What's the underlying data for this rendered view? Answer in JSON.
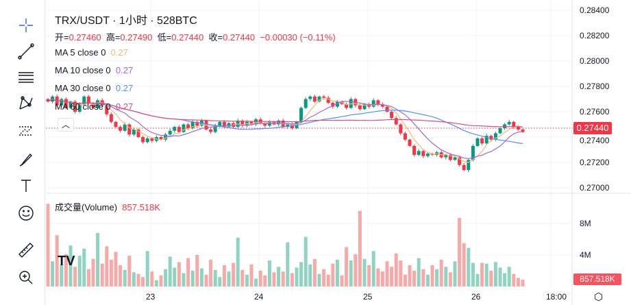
{
  "header": {
    "title": "TRX/USDT · 1小时 · 528BTC",
    "open_label": "开=",
    "open": "0.27460",
    "high_label": "高=",
    "high": "0.27490",
    "low_label": "低=",
    "low": "0.27440",
    "close_label": "收=",
    "close": "0.27440",
    "change": "−0.00030 (−0.11%)"
  },
  "indicators": [
    {
      "label": "MA 5 close 0",
      "value": "0.27",
      "color": "#f5b97a"
    },
    {
      "label": "MA 10 close 0",
      "value": "0.27",
      "color": "#9c6ad3"
    },
    {
      "label": "MA 30 close 0",
      "value": "0.27",
      "color": "#5b8def"
    },
    {
      "label": "MA 60 close 0",
      "value": "0.27",
      "color": "#d64f7e"
    }
  ],
  "volume": {
    "label": "成交量(Volume)",
    "value": "857.518K",
    "badge": "857.518K"
  },
  "price_axis": [
    "0.28400",
    "0.28200",
    "0.28000",
    "0.27800",
    "0.27600",
    "0.27400",
    "0.27200",
    "0.27000"
  ],
  "volume_axis": [
    "8M",
    "4M"
  ],
  "current_price": "0.27440",
  "time_axis": [
    "23",
    "24",
    "25",
    "26",
    "18:00"
  ],
  "colors": {
    "up": "#089981",
    "down": "#f23645",
    "up_vol": "#8fd3c0",
    "down_vol": "#f7a9a7"
  },
  "chart_data": {
    "type": "candlestick",
    "ylim": [
      0.27,
      0.284
    ],
    "closes": [
      0.2768,
      0.2772,
      0.2765,
      0.277,
      0.2763,
      0.2768,
      0.276,
      0.2766,
      0.2772,
      0.2767,
      0.2763,
      0.2769,
      0.2765,
      0.2758,
      0.2752,
      0.2748,
      0.2745,
      0.275,
      0.2742,
      0.2746,
      0.274,
      0.2736,
      0.2739,
      0.2737,
      0.274,
      0.2738,
      0.2742,
      0.2745,
      0.2748,
      0.2744,
      0.275,
      0.2747,
      0.2752,
      0.2749,
      0.2753,
      0.2746,
      0.2744,
      0.2749,
      0.2752,
      0.2748,
      0.2751,
      0.2748,
      0.2753,
      0.2749,
      0.2752,
      0.275,
      0.2754,
      0.2751,
      0.2749,
      0.2752,
      0.275,
      0.2753,
      0.2748,
      0.275,
      0.2747,
      0.2752,
      0.2763,
      0.277,
      0.2772,
      0.2768,
      0.2772,
      0.2771,
      0.2767,
      0.2764,
      0.2768,
      0.2766,
      0.2763,
      0.277,
      0.2765,
      0.2762,
      0.2766,
      0.2764,
      0.2769,
      0.2766,
      0.2764,
      0.276,
      0.2755,
      0.275,
      0.2743,
      0.2738,
      0.2733,
      0.2726,
      0.2729,
      0.2725,
      0.2727,
      0.2726,
      0.2728,
      0.2724,
      0.2726,
      0.2722,
      0.2724,
      0.2718,
      0.2714,
      0.2722,
      0.2733,
      0.2739,
      0.2735,
      0.2741,
      0.2738,
      0.2743,
      0.2747,
      0.275,
      0.2752,
      0.2748,
      0.2746,
      0.2744
    ],
    "volumes_m": [
      10.5,
      3.2,
      6.5,
      2.8,
      4.1,
      5.2,
      2.5,
      3.9,
      4.8,
      2.2,
      3.5,
      6.8,
      2.9,
      5.1,
      3.4,
      4.4,
      2.7,
      2.1,
      3.9,
      1.8,
      1.6,
      1.2,
      4.5,
      1.9,
      0.8,
      1.4,
      2.2,
      3.8,
      2.4,
      3.1,
      1.7,
      3.6,
      2.0,
      4.0,
      2.3,
      1.5,
      3.4,
      2.1,
      1.2,
      2.7,
      1.9,
      3.0,
      6.2,
      2.1,
      1.5,
      2.8,
      1.0,
      2.0,
      1.4,
      3.3,
      1.8,
      2.5,
      1.9,
      5.6,
      1.7,
      2.4,
      3.1,
      6.3,
      2.8,
      3.5,
      1.6,
      2.2,
      1.5,
      2.9,
      3.4,
      1.4,
      5.0,
      3.3,
      4.1,
      9.6,
      3.5,
      2.7,
      4.5,
      2.3,
      1.9,
      3.2,
      2.5,
      4.2,
      3.3,
      1.5,
      2.7,
      2.0,
      3.6,
      2.2,
      1.5,
      2.7,
      2.2,
      3.4,
      2.5,
      1.8,
      3.2,
      8.7,
      5.5,
      4.9,
      3.0,
      1.6,
      3.0,
      2.9,
      2.0,
      3.1,
      2.4,
      1.7,
      2.5,
      1.6,
      1.1,
      0.86
    ]
  }
}
